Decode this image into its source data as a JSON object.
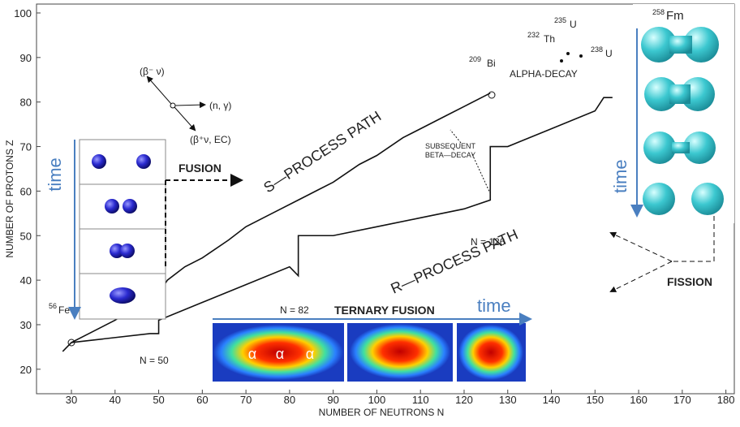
{
  "chart_data": {
    "type": "line",
    "x_label": "NUMBER OF NEUTRONS N",
    "y_label": "NUMBER OF PROTONS Z",
    "xlim": [
      22,
      181
    ],
    "ylim": [
      14.5,
      102
    ],
    "xticks": [
      30,
      40,
      50,
      60,
      70,
      80,
      90,
      100,
      110,
      120,
      130,
      140,
      150,
      160,
      170,
      180
    ],
    "yticks": [
      20,
      30,
      40,
      50,
      60,
      70,
      80,
      90,
      100
    ],
    "series": [
      {
        "name": "S—PROCESS PATH",
        "color": "#111111",
        "x": [
          28,
          30,
          34,
          40,
          50,
          52,
          56,
          60,
          66,
          70,
          76,
          82,
          86,
          90,
          96,
          100,
          106,
          110,
          116,
          120,
          126
        ],
        "values": [
          24,
          26,
          28,
          31,
          37,
          40,
          43,
          45,
          49,
          52,
          55,
          58,
          60,
          62,
          66,
          68,
          72,
          74,
          77,
          79,
          82
        ]
      },
      {
        "name": "R—PROCESS PATH",
        "color": "#111111",
        "x": [
          30,
          48,
          50,
          50,
          60,
          70,
          80,
          82,
          82,
          90,
          100,
          110,
          120,
          126,
          126,
          130,
          140,
          150,
          152,
          154
        ],
        "values": [
          26,
          28,
          28,
          31,
          35,
          39,
          43,
          41,
          50,
          50,
          52,
          54,
          56,
          58,
          70,
          70,
          74,
          78,
          81,
          81
        ]
      }
    ],
    "annotations": {
      "n50": "N = 50",
      "n82": "N = 82",
      "n126": "N = 126",
      "alpha_decay": "ALPHA-DECAY",
      "subsequent": "SUBSEQUENT",
      "beta_decay": "BETA—DECAY",
      "fusion": "FUSION",
      "ternary_fusion": "TERNARY FUSION",
      "fission": "FISSION",
      "time_fusion": "time",
      "time_ternary": "time",
      "time_fission": "time",
      "fe": {
        "mass": "56",
        "element": "Fe"
      },
      "bi": {
        "mass": "209",
        "element": "Bi"
      },
      "th": {
        "mass": "232",
        "element": "Th"
      },
      "u235": {
        "mass": "235",
        "element": "U"
      },
      "u238": {
        "mass": "238",
        "element": "U"
      },
      "fm": {
        "mass": "258",
        "element": "Fm"
      },
      "beta_minus": "(β⁻ ν)",
      "n_gamma": "(n, γ)",
      "beta_plus": "(β⁺ν, EC)",
      "alpha": [
        "α",
        "α",
        "α"
      ]
    }
  }
}
